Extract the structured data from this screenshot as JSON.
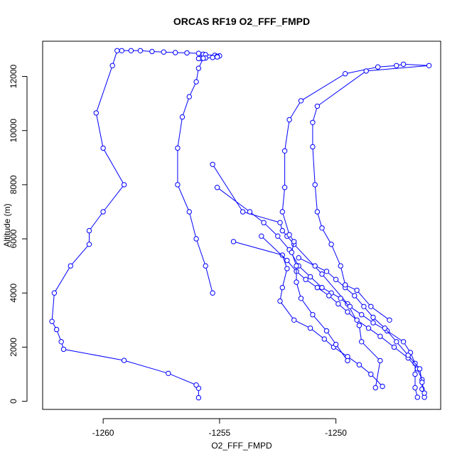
{
  "chart_data": {
    "type": "line",
    "title": "ORCAS RF19 O2_FFF_FMPD",
    "xlabel": "O2_FFF_FMPD",
    "ylabel": "Altitude (m)",
    "xlim": [
      -1262.6,
      -1245.5
    ],
    "ylim": [
      -300,
      13300
    ],
    "xticks": [
      -1260,
      -1255,
      -1250
    ],
    "yticks": [
      0,
      2000,
      4000,
      6000,
      8000,
      10000,
      12000
    ],
    "grid": false,
    "legend": "none",
    "color": "#0000ff",
    "marker": "open-circle",
    "series": [
      {
        "x": [
          -1255.9,
          -1255.9,
          -1256.0,
          -1257.2,
          -1259.1,
          -1261.7,
          -1261.8,
          -1262.0,
          -1262.2,
          -1262.1,
          -1261.4,
          -1260.6,
          -1260.6,
          -1260.0,
          -1259.1,
          -1260.0,
          -1260.3,
          -1259.6,
          -1259.4,
          -1259.2,
          -1258.8,
          -1258.4,
          -1257.9,
          -1257.4,
          -1256.9,
          -1256.4,
          -1255.9,
          -1255.7,
          -1255.6,
          -1255.2,
          -1255.0,
          -1255.1,
          -1255.1,
          -1255.3,
          -1255.6,
          -1255.8,
          -1255.9
        ],
        "y": [
          130,
          480,
          600,
          1030,
          1510,
          1920,
          2200,
          2650,
          2950,
          4000,
          5000,
          5800,
          6300,
          7000,
          8000,
          9350,
          10650,
          12400,
          12950,
          12950,
          12950,
          12950,
          12920,
          12900,
          12880,
          12870,
          12850,
          12820,
          12800,
          12780,
          12760,
          12740,
          12720,
          12700,
          12680,
          12670,
          12660
        ]
      },
      {
        "x": [
          -1255.7,
          -1255.9,
          -1256.0,
          -1256.3,
          -1256.6,
          -1256.8,
          -1256.8,
          -1256.3,
          -1256.0,
          -1255.6,
          -1255.3
        ],
        "y": [
          12670,
          12300,
          11800,
          11250,
          10500,
          9350,
          8000,
          7000,
          6000,
          5000,
          4000
        ]
      },
      {
        "x": [
          -1255.3,
          -1254.0,
          -1252.4,
          -1252.3,
          -1252.1,
          -1251.8,
          -1250.6,
          -1249.5,
          -1249.0,
          -1248.9,
          -1248.1,
          -1248.3
        ],
        "y": [
          8750,
          7000,
          6600,
          6300,
          6100,
          5800,
          4700,
          3600,
          2800,
          2200,
          1500,
          500
        ]
      },
      {
        "x": [
          -1254.4,
          -1252.3,
          -1252.1,
          -1252.3,
          -1252.4,
          -1251.8,
          -1251.1,
          -1250.5,
          -1250.1,
          -1249.5,
          -1249.0,
          -1248.5,
          -1248.0
        ],
        "y": [
          5900,
          5400,
          4900,
          4200,
          3700,
          3000,
          2700,
          2300,
          2000,
          1650,
          1350,
          1000,
          550
        ]
      },
      {
        "x": [
          -1255.1,
          -1253.7,
          -1253.1,
          -1252.5,
          -1252.0,
          -1251.6,
          -1251.1,
          -1250.6,
          -1250.2,
          -1249.8,
          -1249.4,
          -1248.9,
          -1248.4,
          -1247.8,
          -1247.1,
          -1246.8,
          -1246.6,
          -1246.6,
          -1246.6,
          -1246.5
        ],
        "y": [
          7900,
          7000,
          6600,
          6100,
          5600,
          5000,
          4600,
          4200,
          4000,
          3800,
          3500,
          3200,
          2900,
          2600,
          2200,
          1800,
          1400,
          1000,
          500,
          150
        ]
      },
      {
        "x": [
          -1253.2,
          -1252.1,
          -1251.7,
          -1251.3,
          -1250.8,
          -1250.3,
          -1249.9,
          -1249.5,
          -1249.1,
          -1248.6,
          -1248.1,
          -1247.5,
          -1246.9,
          -1246.5,
          -1246.3,
          -1246.3,
          -1246.2
        ],
        "y": [
          6100,
          5200,
          4800,
          4500,
          4200,
          3900,
          3600,
          3300,
          3000,
          2700,
          2400,
          2000,
          1600,
          1200,
          800,
          450,
          150
        ]
      },
      {
        "x": [
          -1251.6,
          -1250.9,
          -1250.4,
          -1250.0,
          -1249.6,
          -1249.2,
          -1248.8,
          -1248.4,
          -1247.9,
          -1247.4,
          -1246.9,
          -1246.4,
          -1246.3,
          -1246.2
        ],
        "y": [
          5300,
          5000,
          4800,
          4500,
          4200,
          3900,
          3500,
          3100,
          2700,
          2200,
          1700,
          1200,
          700,
          300
        ]
      },
      {
        "x": [
          -1247.7,
          -1248.5,
          -1249.1,
          -1249.6,
          -1249.8,
          -1250.2,
          -1250.6,
          -1250.8,
          -1250.9,
          -1251.0,
          -1251.0,
          -1250.8,
          -1248.7,
          -1246.0,
          -1247.1,
          -1247.4,
          -1248.2,
          -1249.6,
          -1251.5,
          -1252.0,
          -1252.2,
          -1252.2,
          -1252.3,
          -1252.0,
          -1251.8,
          -1251.9,
          -1251.7,
          -1251.7,
          -1251.5,
          -1251.0,
          -1250.4,
          -1250.0,
          -1249.5
        ],
        "y": [
          3000,
          3500,
          4100,
          4300,
          5000,
          5800,
          6400,
          7000,
          8000,
          9400,
          10300,
          10900,
          12200,
          12400,
          12450,
          12400,
          12350,
          12100,
          11100,
          10400,
          9250,
          7900,
          7000,
          6150,
          5900,
          5500,
          5000,
          4400,
          3800,
          3200,
          2600,
          2100,
          1500
        ]
      }
    ]
  }
}
